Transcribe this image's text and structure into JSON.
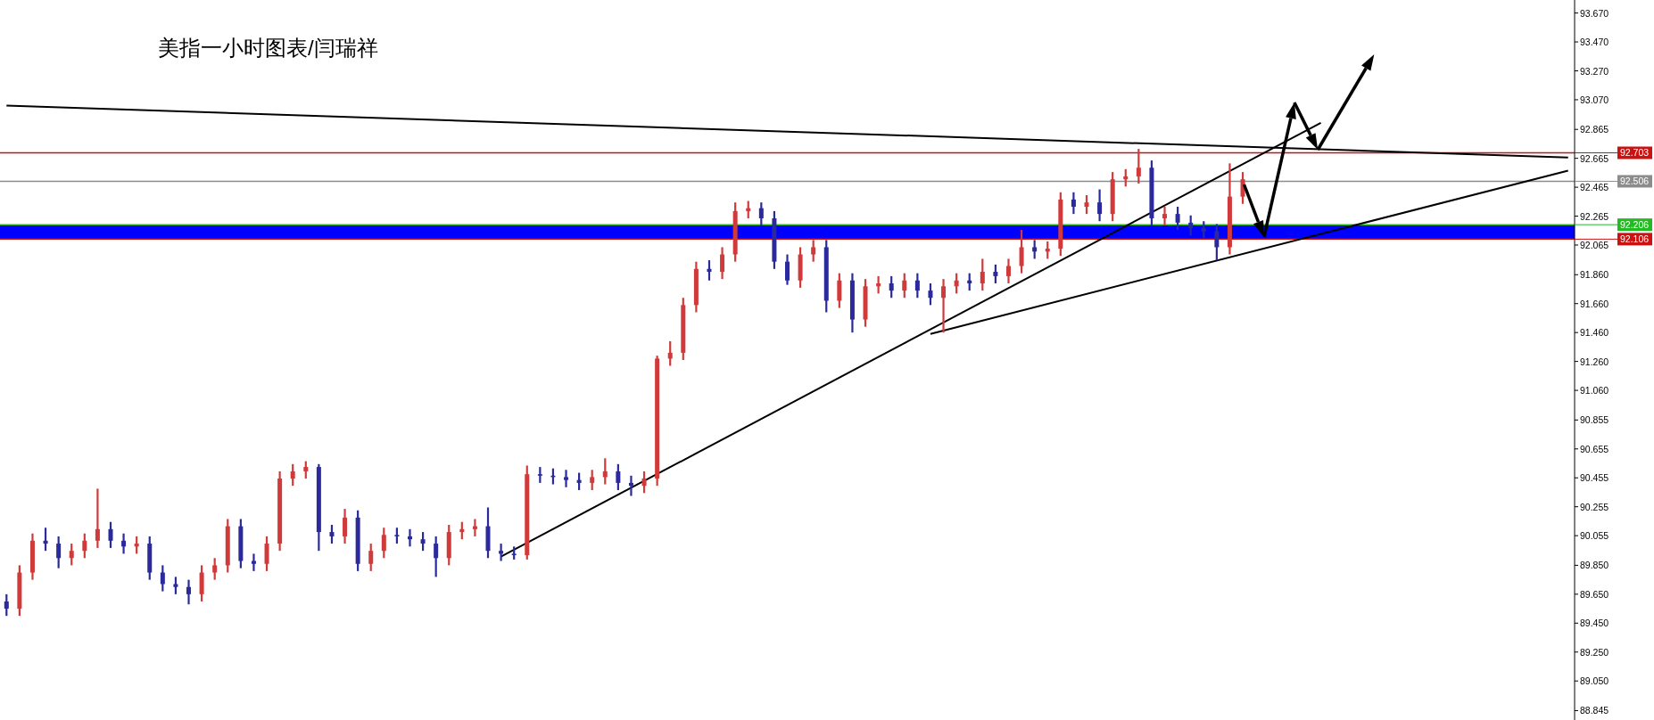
{
  "chart_data": {
    "type": "candlestick",
    "title": "美指一小时图表/闫瑞祥",
    "categories": [
      null,
      null,
      null,
      null,
      null,
      null,
      null,
      null,
      null,
      null,
      null,
      null,
      null,
      null,
      null,
      null,
      null,
      null,
      null,
      null,
      null,
      null,
      null,
      null,
      null,
      null,
      null,
      null,
      null,
      null,
      null,
      null,
      null,
      null,
      null,
      null,
      null,
      null,
      null,
      null,
      null,
      null,
      null,
      null,
      null,
      null,
      null,
      null,
      null,
      null,
      null,
      null,
      null,
      null,
      null,
      null,
      null,
      null,
      null,
      null,
      null,
      null,
      null,
      null,
      null,
      null,
      null,
      null,
      null,
      null,
      null,
      null,
      null,
      null,
      null,
      null,
      null,
      null,
      null,
      null,
      null,
      null,
      null,
      null,
      null,
      null,
      null,
      null,
      null,
      null,
      null,
      null,
      null,
      null,
      null,
      null,
      null,
      null,
      null,
      null,
      null,
      null,
      null,
      null,
      null,
      null,
      null,
      null,
      null,
      null,
      null,
      null,
      null,
      null,
      null,
      null,
      null,
      null,
      null,
      null,
      null
    ],
    "ohlc": [
      [
        89.6,
        89.65,
        89.5,
        89.55
      ],
      [
        89.55,
        89.85,
        89.5,
        89.8
      ],
      [
        89.8,
        90.07,
        89.75,
        90.02
      ],
      [
        90.02,
        90.11,
        89.95,
        90.0
      ],
      [
        90.0,
        90.05,
        89.83,
        89.9
      ],
      [
        89.9,
        90.0,
        89.85,
        89.95
      ],
      [
        89.95,
        90.07,
        89.9,
        90.02
      ],
      [
        90.02,
        90.38,
        89.97,
        90.1
      ],
      [
        90.1,
        90.15,
        89.97,
        90.02
      ],
      [
        90.02,
        90.07,
        89.93,
        89.98
      ],
      [
        89.98,
        90.05,
        89.93,
        90.0
      ],
      [
        90.0,
        90.05,
        89.75,
        89.8
      ],
      [
        89.8,
        89.85,
        89.67,
        89.72
      ],
      [
        89.72,
        89.77,
        89.65,
        89.7
      ],
      [
        89.7,
        89.75,
        89.58,
        89.65
      ],
      [
        89.65,
        89.85,
        89.6,
        89.8
      ],
      [
        89.8,
        89.9,
        89.75,
        89.85
      ],
      [
        89.85,
        90.17,
        89.8,
        90.12
      ],
      [
        90.12,
        90.17,
        89.83,
        89.88
      ],
      [
        89.88,
        89.93,
        89.81,
        89.86
      ],
      [
        89.86,
        90.05,
        89.81,
        90.0
      ],
      [
        90.0,
        90.5,
        89.95,
        90.45
      ],
      [
        90.45,
        90.55,
        90.4,
        90.5
      ],
      [
        90.5,
        90.57,
        90.45,
        90.53
      ],
      [
        90.53,
        90.55,
        89.95,
        90.08
      ],
      [
        90.08,
        90.13,
        90.0,
        90.05
      ],
      [
        90.05,
        90.24,
        90.0,
        90.18
      ],
      [
        90.18,
        90.23,
        89.81,
        89.86
      ],
      [
        89.86,
        90.0,
        89.81,
        89.95
      ],
      [
        89.95,
        90.11,
        89.9,
        90.06
      ],
      [
        90.06,
        90.11,
        90.0,
        90.05
      ],
      [
        90.05,
        90.1,
        89.98,
        90.03
      ],
      [
        90.03,
        90.08,
        89.95,
        90.0
      ],
      [
        90.0,
        90.05,
        89.77,
        89.9
      ],
      [
        89.9,
        90.13,
        89.85,
        90.08
      ],
      [
        90.08,
        90.15,
        90.03,
        90.1
      ],
      [
        90.1,
        90.17,
        90.05,
        90.12
      ],
      [
        90.12,
        90.25,
        89.9,
        89.95
      ],
      [
        89.95,
        90.0,
        89.88,
        89.93
      ],
      [
        89.93,
        89.98,
        89.89,
        89.92
      ],
      [
        89.92,
        90.54,
        89.89,
        90.48
      ],
      [
        90.48,
        90.53,
        90.42,
        90.47
      ],
      [
        90.47,
        90.52,
        90.41,
        90.46
      ],
      [
        90.46,
        90.51,
        90.39,
        90.44
      ],
      [
        90.44,
        90.49,
        90.37,
        90.42
      ],
      [
        90.42,
        90.51,
        90.37,
        90.46
      ],
      [
        90.46,
        90.59,
        90.41,
        90.5
      ],
      [
        90.5,
        90.55,
        90.37,
        90.42
      ],
      [
        90.42,
        90.47,
        90.33,
        90.4
      ],
      [
        90.4,
        90.5,
        90.35,
        90.45
      ],
      [
        90.45,
        91.3,
        90.4,
        91.28
      ],
      [
        91.28,
        91.4,
        91.23,
        91.32
      ],
      [
        91.32,
        91.7,
        91.27,
        91.65
      ],
      [
        91.65,
        91.95,
        91.6,
        91.9
      ],
      [
        91.9,
        91.96,
        91.82,
        91.88
      ],
      [
        91.88,
        92.05,
        91.83,
        92.0
      ],
      [
        92.0,
        92.36,
        91.95,
        92.3
      ],
      [
        92.3,
        92.37,
        92.25,
        92.32
      ],
      [
        92.32,
        92.36,
        92.2,
        92.25
      ],
      [
        92.25,
        92.3,
        91.9,
        91.95
      ],
      [
        91.95,
        92.0,
        91.79,
        91.82
      ],
      [
        91.82,
        92.05,
        91.77,
        92.0
      ],
      [
        92.0,
        92.1,
        91.95,
        92.05
      ],
      [
        92.05,
        92.1,
        91.6,
        91.68
      ],
      [
        91.68,
        91.87,
        91.63,
        91.82
      ],
      [
        91.82,
        91.87,
        91.46,
        91.55
      ],
      [
        91.55,
        91.83,
        91.5,
        91.78
      ],
      [
        91.78,
        91.85,
        91.73,
        91.8
      ],
      [
        91.8,
        91.85,
        91.7,
        91.75
      ],
      [
        91.75,
        91.87,
        91.7,
        91.82
      ],
      [
        91.82,
        91.87,
        91.7,
        91.75
      ],
      [
        91.75,
        91.8,
        91.65,
        91.7
      ],
      [
        91.7,
        91.83,
        91.46,
        91.78
      ],
      [
        91.78,
        91.87,
        91.73,
        91.82
      ],
      [
        91.82,
        91.87,
        91.75,
        91.8
      ],
      [
        91.8,
        91.97,
        91.75,
        91.88
      ],
      [
        91.88,
        91.93,
        91.8,
        91.85
      ],
      [
        91.85,
        91.97,
        91.8,
        91.92
      ],
      [
        91.92,
        92.17,
        91.87,
        92.05
      ],
      [
        92.05,
        92.1,
        91.97,
        92.02
      ],
      [
        92.02,
        92.09,
        91.97,
        92.04
      ],
      [
        92.04,
        92.43,
        91.99,
        92.38
      ],
      [
        92.38,
        92.43,
        92.28,
        92.33
      ],
      [
        92.33,
        92.41,
        92.28,
        92.36
      ],
      [
        92.36,
        92.45,
        92.23,
        92.28
      ],
      [
        92.28,
        92.57,
        92.23,
        92.52
      ],
      [
        92.52,
        92.59,
        92.47,
        92.54
      ],
      [
        92.54,
        92.73,
        92.49,
        92.6
      ],
      [
        92.6,
        92.65,
        92.2,
        92.25
      ],
      [
        92.25,
        92.33,
        92.2,
        92.28
      ],
      [
        92.28,
        92.33,
        92.17,
        92.22
      ],
      [
        92.22,
        92.27,
        92.13,
        92.18
      ],
      [
        92.18,
        92.23,
        92.11,
        92.16
      ],
      [
        92.16,
        92.21,
        91.96,
        92.05
      ],
      [
        92.05,
        92.63,
        92.0,
        92.4
      ],
      [
        92.4,
        92.57,
        92.35,
        92.52
      ],
      null,
      null,
      null,
      null,
      null,
      null,
      null,
      null,
      null,
      null,
      null,
      null,
      null,
      null,
      null,
      null,
      null,
      null,
      null,
      null,
      null,
      null,
      null,
      null,
      null
    ],
    "colors": [
      "#2a2a9c",
      "#d03a3a",
      "#d03a3a",
      "#2a2a9c",
      "#2a2a9c",
      "#d03a3a",
      "#d03a3a",
      "#d03a3a",
      "#2a2a9c",
      "#2a2a9c",
      "#d03a3a",
      "#2a2a9c",
      "#2a2a9c",
      "#2a2a9c",
      "#2a2a9c",
      "#d03a3a",
      "#d03a3a",
      "#d03a3a",
      "#2a2a9c",
      "#2a2a9c",
      "#d03a3a",
      "#d03a3a",
      "#d03a3a",
      "#d03a3a",
      "#2a2a9c",
      "#2a2a9c",
      "#d03a3a",
      "#2a2a9c",
      "#d03a3a",
      "#d03a3a",
      "#2a2a9c",
      "#2a2a9c",
      "#2a2a9c",
      "#2a2a9c",
      "#d03a3a",
      "#d03a3a",
      "#d03a3a",
      "#2a2a9c",
      "#2a2a9c",
      "#2a2a9c",
      "#d03a3a",
      "#2a2a9c",
      "#2a2a9c",
      "#2a2a9c",
      "#2a2a9c",
      "#d03a3a",
      "#d03a3a",
      "#2a2a9c",
      "#2a2a9c",
      "#d03a3a",
      "#d03a3a",
      "#d03a3a",
      "#d03a3a",
      "#d03a3a",
      "#2a2a9c",
      "#d03a3a",
      "#d03a3a",
      "#d03a3a",
      "#2a2a9c",
      "#2a2a9c",
      "#2a2a9c",
      "#d03a3a",
      "#d03a3a",
      "#2a2a9c",
      "#d03a3a",
      "#2a2a9c",
      "#d03a3a",
      "#d03a3a",
      "#2a2a9c",
      "#d03a3a",
      "#2a2a9c",
      "#2a2a9c",
      "#d03a3a",
      "#d03a3a",
      "#2a2a9c",
      "#d03a3a",
      "#2a2a9c",
      "#d03a3a",
      "#d03a3a",
      "#2a2a9c",
      "#d03a3a",
      "#d03a3a",
      "#2a2a9c",
      "#d03a3a",
      "#2a2a9c",
      "#d03a3a",
      "#d03a3a",
      "#d03a3a",
      "#2a2a9c",
      "#d03a3a",
      "#2a2a9c",
      "#2a2a9c",
      "#2a2a9c",
      "#2a2a9c",
      "#d03a3a",
      "#d03a3a",
      null,
      null,
      null,
      null,
      null,
      null,
      null,
      null,
      null,
      null,
      null,
      null,
      null,
      null,
      null,
      null,
      null,
      null,
      null,
      null,
      null,
      null,
      null,
      null,
      null
    ],
    "series": [
      {
        "type": "line",
        "values": [
          93.03,
          null,
          null,
          null,
          null,
          null,
          null,
          null,
          null,
          null,
          null,
          null,
          null,
          null,
          null,
          null,
          null,
          null,
          null,
          null,
          null,
          null,
          null,
          null,
          null,
          null,
          null,
          null,
          null,
          null,
          null,
          null,
          null,
          null,
          null,
          null,
          null,
          null,
          null,
          null,
          null,
          null,
          null,
          null,
          null,
          null,
          null,
          null,
          null,
          null,
          null,
          null,
          null,
          null,
          null,
          null,
          null,
          null,
          null,
          null,
          null,
          null,
          null,
          null,
          null,
          null,
          null,
          null,
          null,
          null,
          null,
          null,
          null,
          null,
          null,
          null,
          null,
          null,
          null,
          null,
          null,
          null,
          null,
          null,
          null,
          null,
          null,
          null,
          null,
          null,
          null,
          null,
          null,
          null,
          null,
          null,
          null,
          null,
          null,
          null,
          null,
          null,
          null,
          null,
          null,
          null,
          null,
          null,
          null,
          null,
          null,
          null,
          null,
          null,
          null,
          null,
          null,
          null,
          null,
          null,
          92.67
        ],
        "color": "#000000"
      },
      {
        "type": "line",
        "values": [
          null,
          null,
          null,
          null,
          null,
          null,
          null,
          null,
          null,
          null,
          null,
          null,
          null,
          null,
          null,
          null,
          null,
          null,
          null,
          null,
          null,
          null,
          null,
          null,
          null,
          null,
          null,
          null,
          null,
          null,
          null,
          null,
          null,
          null,
          null,
          null,
          null,
          null,
          89.91,
          null,
          null,
          null,
          null,
          null,
          null,
          null,
          null,
          null,
          null,
          null,
          null,
          null,
          null,
          null,
          null,
          null,
          null,
          null,
          null,
          null,
          null,
          null,
          null,
          null,
          null,
          null,
          null,
          null,
          null,
          null,
          null,
          null,
          null,
          null,
          null,
          null,
          null,
          null,
          null,
          null,
          null,
          null,
          null,
          null,
          null,
          null,
          null,
          null,
          null,
          null,
          null,
          null,
          null,
          null,
          null,
          null,
          null,
          null,
          null,
          null,
          null,
          92.91,
          null,
          null,
          null,
          null,
          null,
          null,
          null,
          null,
          null,
          null,
          null,
          null,
          null,
          null,
          null,
          null,
          null,
          null,
          null
        ],
        "color": "#000000"
      },
      {
        "type": "line",
        "values": [
          null,
          null,
          null,
          null,
          null,
          null,
          null,
          null,
          null,
          null,
          null,
          null,
          null,
          null,
          null,
          null,
          null,
          null,
          null,
          null,
          null,
          null,
          null,
          null,
          null,
          null,
          null,
          null,
          null,
          null,
          null,
          null,
          null,
          null,
          null,
          null,
          null,
          null,
          null,
          null,
          null,
          null,
          null,
          null,
          null,
          null,
          null,
          null,
          null,
          null,
          null,
          null,
          null,
          null,
          null,
          null,
          null,
          null,
          null,
          null,
          null,
          null,
          null,
          null,
          null,
          null,
          null,
          null,
          null,
          null,
          null,
          91.45,
          null,
          null,
          null,
          null,
          null,
          null,
          null,
          null,
          null,
          null,
          null,
          null,
          null,
          null,
          null,
          null,
          null,
          null,
          null,
          null,
          null,
          null,
          null,
          null,
          null,
          null,
          null,
          null,
          null,
          null,
          null,
          null,
          null,
          null,
          null,
          null,
          null,
          null,
          null,
          null,
          null,
          null,
          null,
          null,
          null,
          null,
          null,
          null,
          92.58
        ],
        "color": "#000000"
      }
    ],
    "ylim": [
      88.78,
      93.76
    ],
    "yticks": [
      {
        "value": 93.67,
        "label": "93.670"
      },
      {
        "value": 93.47,
        "label": "93.470"
      },
      {
        "value": 93.27,
        "label": "93.270"
      },
      {
        "value": 93.07,
        "label": "93.070"
      },
      {
        "value": 92.865,
        "label": "92.865"
      },
      {
        "value": 92.665,
        "label": "92.665"
      },
      {
        "value": 92.465,
        "label": "92.465"
      },
      {
        "value": 92.265,
        "label": "92.265"
      },
      {
        "value": 92.065,
        "label": "92.065"
      },
      {
        "value": 91.86,
        "label": "91.860"
      },
      {
        "value": 91.66,
        "label": "91.660"
      },
      {
        "value": 91.46,
        "label": "91.460"
      },
      {
        "value": 91.26,
        "label": "91.260"
      },
      {
        "value": 91.06,
        "label": "91.060"
      },
      {
        "value": 90.855,
        "label": "90.855"
      },
      {
        "value": 90.655,
        "label": "90.655"
      },
      {
        "value": 90.455,
        "label": "90.455"
      },
      {
        "value": 90.255,
        "label": "90.255"
      },
      {
        "value": 90.055,
        "label": "90.055"
      },
      {
        "value": 89.85,
        "label": "89.850"
      },
      {
        "value": 89.65,
        "label": "89.650"
      },
      {
        "value": 89.45,
        "label": "89.450"
      },
      {
        "value": 89.25,
        "label": "89.250"
      },
      {
        "value": 89.05,
        "label": "89.050"
      },
      {
        "value": 88.845,
        "label": "88.845"
      }
    ],
    "bands": [
      {
        "axis": "y",
        "from": 92.106,
        "to": 92.206,
        "color": "#0000ff"
      }
    ],
    "ref_lines": [
      {
        "axis": "y",
        "value": 92.703,
        "label": "92.703",
        "color": "#cc1111"
      },
      {
        "axis": "y",
        "value": 92.506,
        "label": "92.506",
        "color": "#8c8c8c"
      },
      {
        "axis": "y",
        "value": 92.206,
        "label": "92.206",
        "color": "#22bb22"
      },
      {
        "axis": "y",
        "value": 92.106,
        "label": "92.106",
        "color": "#cc1111"
      }
    ],
    "tick_labels": "y",
    "grid": false
  }
}
